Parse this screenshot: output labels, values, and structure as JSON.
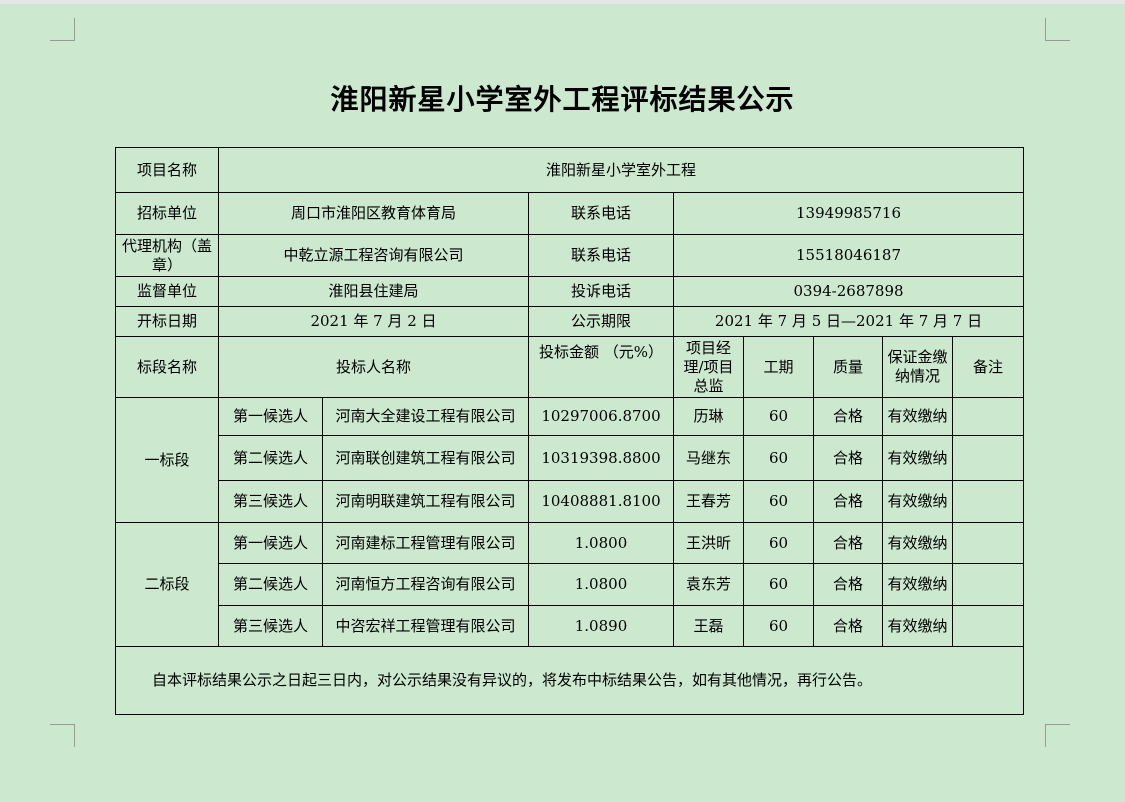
{
  "title": "淮阳新星小学室外工程评标结果公示",
  "info": {
    "project_label": "项目名称",
    "project_value": "淮阳新星小学室外工程",
    "rows": [
      {
        "label": "招标单位",
        "value": "周口市淮阳区教育体育局",
        "label2": "联系电话",
        "value2": "13949985716"
      },
      {
        "label": "代理机构（盖章）",
        "value": "中乾立源工程咨询有限公司",
        "label2": "联系电话",
        "value2": "15518046187"
      },
      {
        "label": "监督单位",
        "value": "淮阳县住建局",
        "label2": "投诉电话",
        "value2": "0394-2687898"
      },
      {
        "label": "开标日期",
        "value": "2021 年 7 月 2 日",
        "label2": "公示期限",
        "value2": "2021 年 7 月 5 日—2021 年 7 月 7 日"
      }
    ]
  },
  "headers": [
    "标段名称",
    "投标人名称",
    "投标金额 （元%）",
    "项目经理/项目总监",
    "工期",
    "质量",
    "保证金缴纳情况",
    "备注"
  ],
  "sections": [
    {
      "name": "一标段",
      "bids": [
        {
          "rank": "第一候选人",
          "bidder": "河南大全建设工程有限公司",
          "amount": "10297006.8700",
          "manager": "历琳",
          "period": "60",
          "quality": "合格",
          "deposit": "有效缴纳",
          "remark": ""
        },
        {
          "rank": "第二候选人",
          "bidder": "河南联创建筑工程有限公司",
          "amount": "10319398.8800",
          "manager": "马继东",
          "period": "60",
          "quality": "合格",
          "deposit": "有效缴纳",
          "remark": ""
        },
        {
          "rank": "第三候选人",
          "bidder": "河南明联建筑工程有限公司",
          "amount": "10408881.8100",
          "manager": "王春芳",
          "period": "60",
          "quality": "合格",
          "deposit": "有效缴纳",
          "remark": ""
        }
      ]
    },
    {
      "name": "二标段",
      "bids": [
        {
          "rank": "第一候选人",
          "bidder": "河南建标工程管理有限公司",
          "amount": "1.0800",
          "manager": "王洪昕",
          "period": "60",
          "quality": "合格",
          "deposit": "有效缴纳",
          "remark": ""
        },
        {
          "rank": "第二候选人",
          "bidder": "河南恒方工程咨询有限公司",
          "amount": "1.0800",
          "manager": "袁东芳",
          "period": "60",
          "quality": "合格",
          "deposit": "有效缴纳",
          "remark": ""
        },
        {
          "rank": "第三候选人",
          "bidder": "中咨宏祥工程管理有限公司",
          "amount": "1.0890",
          "manager": "王磊",
          "period": "60",
          "quality": "合格",
          "deposit": "有效缴纳",
          "remark": ""
        }
      ]
    }
  ],
  "note": "自本评标结果公示之日起三日内，对公示结果没有异议的，将发布中标结果公告，如有其他情况，再行公告。"
}
